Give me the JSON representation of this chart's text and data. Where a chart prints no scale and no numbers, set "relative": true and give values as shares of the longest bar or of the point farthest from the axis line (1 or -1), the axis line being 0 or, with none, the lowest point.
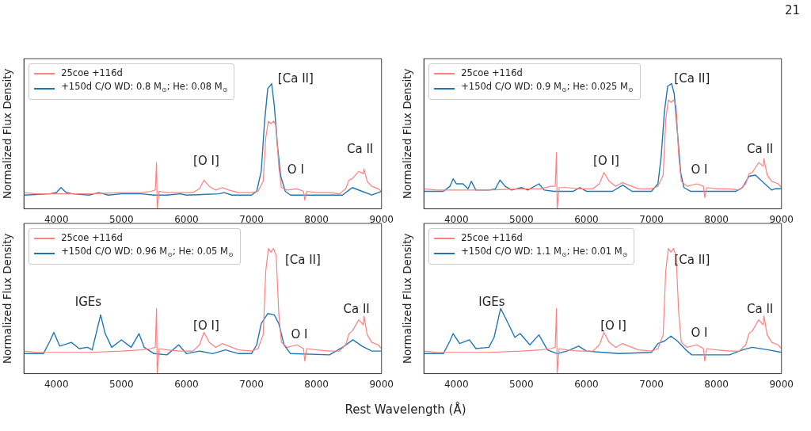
{
  "chart_data": [
    {
      "type": "line",
      "relative": true,
      "ylabel": "Normalized Flux Density",
      "xlim": [
        3500,
        9000
      ],
      "xticks": [
        4000,
        5000,
        6000,
        7000,
        8000,
        9000
      ],
      "tick_labels": "x",
      "legend": "top left",
      "annotations": [
        "21",
        "[Ca II]",
        "[O I]",
        "O I",
        "Ca II"
      ],
      "series": [
        {
          "name": "25coe +116d",
          "color": "#ff8080",
          "x": [
            3500,
            3700,
            3900,
            4100,
            4500,
            5000,
            5300,
            5450,
            5520,
            5540,
            5550,
            5580,
            5700,
            5900,
            6100,
            6200,
            6270,
            6350,
            6450,
            6550,
            6650,
            6800,
            7000,
            7100,
            7180,
            7220,
            7260,
            7300,
            7340,
            7380,
            7420,
            7460,
            7550,
            7700,
            7800,
            7820,
            7850,
            8000,
            8200,
            8350,
            8450,
            8500,
            8550,
            8650,
            8720,
            8730,
            8780,
            8850,
            8950,
            9000
          ],
          "values": [
            0.13,
            0.12,
            0.12,
            0.12,
            0.12,
            0.13,
            0.13,
            0.14,
            0.15,
            0.37,
            0,
            0.14,
            0.13,
            0.13,
            0.13,
            0.16,
            0.23,
            0.18,
            0.15,
            0.17,
            0.15,
            0.13,
            0.13,
            0.14,
            0.22,
            0.57,
            0.7,
            0.68,
            0.7,
            0.66,
            0.34,
            0.17,
            0.15,
            0.16,
            0.14,
            0.07,
            0.14,
            0.13,
            0.13,
            0.12,
            0.16,
            0.23,
            0.24,
            0.3,
            0.28,
            0.32,
            0.22,
            0.18,
            0.16,
            0.14
          ]
        },
        {
          "name": "+150d C/O WD: 0.8 M$_{⊙}$; He: 0.08 M$_{⊙}$",
          "color": "#1f77b4",
          "x": [
            3500,
            3900,
            4000,
            4070,
            4150,
            4250,
            4500,
            4650,
            4800,
            5000,
            5300,
            5500,
            5700,
            5900,
            6000,
            6500,
            6580,
            6700,
            7000,
            7080,
            7150,
            7200,
            7250,
            7310,
            7350,
            7400,
            7450,
            7520,
            7600,
            8000,
            8400,
            8500,
            8550,
            8700,
            8850,
            8950,
            9000
          ],
          "values": [
            0.11,
            0.12,
            0.13,
            0.17,
            0.13,
            0.12,
            0.11,
            0.13,
            0.11,
            0.12,
            0.12,
            0.11,
            0.11,
            0.12,
            0.11,
            0.12,
            0.13,
            0.11,
            0.11,
            0.14,
            0.3,
            0.69,
            0.96,
            1,
            0.83,
            0.5,
            0.26,
            0.14,
            0.11,
            0.11,
            0.11,
            0.15,
            0.17,
            0.14,
            0.11,
            0.13,
            0.14
          ]
        }
      ]
    },
    {
      "type": "line",
      "relative": true,
      "ylabel": "Normalized Flux Density",
      "xlim": [
        3500,
        9000
      ],
      "xticks": [
        4000,
        5000,
        6000,
        7000,
        8000,
        9000
      ],
      "tick_labels": "x",
      "legend": "top left",
      "annotations": [
        "[Ca II]",
        "[O I]",
        "O I",
        "Ca II"
      ],
      "series": [
        {
          "name": "25coe +116d",
          "color": "#ff8080",
          "x": [
            3500,
            3700,
            3900,
            4100,
            4500,
            5000,
            5300,
            5450,
            5520,
            5540,
            5550,
            5580,
            5700,
            5900,
            6100,
            6200,
            6270,
            6350,
            6450,
            6550,
            6650,
            6800,
            7000,
            7100,
            7180,
            7220,
            7260,
            7300,
            7340,
            7380,
            7420,
            7460,
            7550,
            7700,
            7800,
            7820,
            7850,
            8000,
            8200,
            8350,
            8450,
            8500,
            8550,
            8650,
            8720,
            8730,
            8780,
            8850,
            8950,
            9000
          ],
          "values": [
            0.16,
            0.15,
            0.15,
            0.15,
            0.15,
            0.16,
            0.16,
            0.18,
            0.18,
            0.45,
            0,
            0.17,
            0.17,
            0.16,
            0.16,
            0.2,
            0.29,
            0.22,
            0.18,
            0.21,
            0.19,
            0.16,
            0.16,
            0.18,
            0.27,
            0.71,
            0.87,
            0.85,
            0.87,
            0.82,
            0.42,
            0.22,
            0.18,
            0.2,
            0.18,
            0.09,
            0.17,
            0.16,
            0.16,
            0.15,
            0.2,
            0.28,
            0.29,
            0.37,
            0.34,
            0.4,
            0.27,
            0.22,
            0.2,
            0.17
          ]
        },
        {
          "name": "+150d C/O WD: 0.9 M$_{⊙}$; He: 0.025 M$_{⊙}$",
          "color": "#1f77b4",
          "x": [
            3500,
            3800,
            3900,
            3950,
            4000,
            4100,
            4180,
            4230,
            4300,
            4500,
            4600,
            4670,
            4750,
            4850,
            5000,
            5100,
            5270,
            5350,
            5500,
            5800,
            5900,
            6000,
            6400,
            6560,
            6700,
            7000,
            7100,
            7150,
            7200,
            7250,
            7310,
            7350,
            7400,
            7450,
            7500,
            7600,
            8300,
            8400,
            8500,
            8600,
            8700,
            8850,
            8900,
            9000
          ],
          "values": [
            0.14,
            0.14,
            0.18,
            0.24,
            0.2,
            0.2,
            0.16,
            0.22,
            0.15,
            0.15,
            0.16,
            0.23,
            0.18,
            0.15,
            0.17,
            0.15,
            0.2,
            0.15,
            0.14,
            0.14,
            0.17,
            0.14,
            0.14,
            0.19,
            0.14,
            0.14,
            0.2,
            0.42,
            0.78,
            0.98,
            1,
            0.92,
            0.61,
            0.29,
            0.17,
            0.14,
            0.14,
            0.17,
            0.26,
            0.27,
            0.22,
            0.15,
            0.16,
            0.16
          ]
        }
      ]
    },
    {
      "type": "line",
      "relative": true,
      "ylabel": "Normalized Flux Density",
      "xlabel": "Rest Wavelength (Å)",
      "xlim": [
        3500,
        9000
      ],
      "xticks": [
        4000,
        5000,
        6000,
        7000,
        8000,
        9000
      ],
      "tick_labels": "x",
      "legend": "top left",
      "annotations": [
        "IGEs",
        "[O I]",
        "[Ca II]",
        "O I",
        "Ca II"
      ],
      "series": [
        {
          "name": "25coe +116d",
          "color": "#ff8080",
          "x": [
            3500,
            3700,
            3900,
            4100,
            4500,
            5000,
            5300,
            5450,
            5520,
            5540,
            5550,
            5580,
            5700,
            5900,
            6100,
            6200,
            6270,
            6350,
            6450,
            6550,
            6650,
            6800,
            7000,
            7100,
            7180,
            7220,
            7260,
            7300,
            7340,
            7380,
            7420,
            7460,
            7550,
            7700,
            7800,
            7820,
            7850,
            8000,
            8200,
            8350,
            8450,
            8500,
            8550,
            8650,
            8720,
            8730,
            8780,
            8850,
            8950,
            9000
          ],
          "values": [
            0.18,
            0.17,
            0.17,
            0.17,
            0.17,
            0.18,
            0.19,
            0.2,
            0.21,
            0.52,
            0,
            0.2,
            0.19,
            0.18,
            0.18,
            0.23,
            0.33,
            0.25,
            0.21,
            0.24,
            0.22,
            0.19,
            0.18,
            0.2,
            0.31,
            0.82,
            1,
            0.97,
            1,
            0.94,
            0.48,
            0.25,
            0.21,
            0.23,
            0.2,
            0.1,
            0.2,
            0.19,
            0.18,
            0.18,
            0.23,
            0.32,
            0.34,
            0.43,
            0.39,
            0.46,
            0.31,
            0.25,
            0.23,
            0.2
          ]
        },
        {
          "name": "+150d C/O WD: 0.96 M$_{⊙}$; He: 0.05 M$_{⊙}$",
          "color": "#1f77b4",
          "x": [
            3500,
            3800,
            3900,
            3960,
            4050,
            4230,
            4350,
            4480,
            4550,
            4620,
            4680,
            4750,
            4850,
            5000,
            5150,
            5270,
            5350,
            5500,
            5700,
            5880,
            6000,
            6200,
            6400,
            6600,
            6800,
            7000,
            7080,
            7150,
            7250,
            7350,
            7420,
            7500,
            7600,
            8200,
            8400,
            8560,
            8700,
            8850,
            9000
          ],
          "values": [
            0.16,
            0.16,
            0.26,
            0.33,
            0.22,
            0.25,
            0.2,
            0.21,
            0.19,
            0.34,
            0.47,
            0.32,
            0.21,
            0.27,
            0.21,
            0.32,
            0.21,
            0.16,
            0.15,
            0.23,
            0.16,
            0.18,
            0.16,
            0.19,
            0.16,
            0.16,
            0.23,
            0.4,
            0.48,
            0.47,
            0.4,
            0.23,
            0.16,
            0.15,
            0.21,
            0.27,
            0.22,
            0.18,
            0.18
          ]
        }
      ]
    },
    {
      "type": "line",
      "relative": true,
      "ylabel": "Normalized Flux Density",
      "xlim": [
        3500,
        9000
      ],
      "xticks": [
        4000,
        5000,
        6000,
        7000,
        8000,
        9000
      ],
      "tick_labels": "x",
      "legend": "top left",
      "annotations": [
        "IGEs",
        "[O I]",
        "[Ca II]",
        "O I",
        "Ca II"
      ],
      "series": [
        {
          "name": "25coe +116d",
          "color": "#ff8080",
          "x": [
            3500,
            3700,
            3900,
            4100,
            4500,
            5000,
            5300,
            5450,
            5520,
            5540,
            5550,
            5580,
            5700,
            5900,
            6100,
            6200,
            6270,
            6350,
            6450,
            6550,
            6650,
            6800,
            7000,
            7100,
            7180,
            7220,
            7260,
            7300,
            7340,
            7380,
            7420,
            7460,
            7550,
            7700,
            7800,
            7820,
            7850,
            8000,
            8200,
            8350,
            8450,
            8500,
            8550,
            8650,
            8720,
            8730,
            8780,
            8850,
            8950,
            9000
          ],
          "values": [
            0.18,
            0.17,
            0.17,
            0.17,
            0.17,
            0.18,
            0.19,
            0.2,
            0.21,
            0.52,
            0,
            0.2,
            0.19,
            0.18,
            0.18,
            0.23,
            0.33,
            0.25,
            0.21,
            0.24,
            0.22,
            0.19,
            0.18,
            0.2,
            0.31,
            0.82,
            1,
            0.97,
            1,
            0.94,
            0.48,
            0.25,
            0.21,
            0.23,
            0.2,
            0.1,
            0.2,
            0.19,
            0.18,
            0.18,
            0.23,
            0.32,
            0.34,
            0.43,
            0.39,
            0.46,
            0.31,
            0.25,
            0.23,
            0.2
          ]
        },
        {
          "name": "+150d C/O WD: 1.1 M$_{⊙}$; He: 0.01 M$_{⊙}$",
          "color": "#1f77b4",
          "x": [
            3500,
            3800,
            3900,
            3950,
            4050,
            4200,
            4300,
            4500,
            4580,
            4680,
            4750,
            4900,
            4980,
            5130,
            5270,
            5400,
            5550,
            5700,
            5880,
            6000,
            6500,
            7000,
            7100,
            7200,
            7300,
            7400,
            7550,
            7620,
            8200,
            8400,
            8550,
            8800,
            9000
          ],
          "values": [
            0.16,
            0.16,
            0.26,
            0.32,
            0.24,
            0.27,
            0.2,
            0.21,
            0.29,
            0.52,
            0.45,
            0.29,
            0.32,
            0.23,
            0.31,
            0.19,
            0.16,
            0.18,
            0.22,
            0.18,
            0.16,
            0.17,
            0.24,
            0.26,
            0.3,
            0.26,
            0.18,
            0.15,
            0.15,
            0.19,
            0.21,
            0.19,
            0.17
          ]
        }
      ]
    }
  ]
}
